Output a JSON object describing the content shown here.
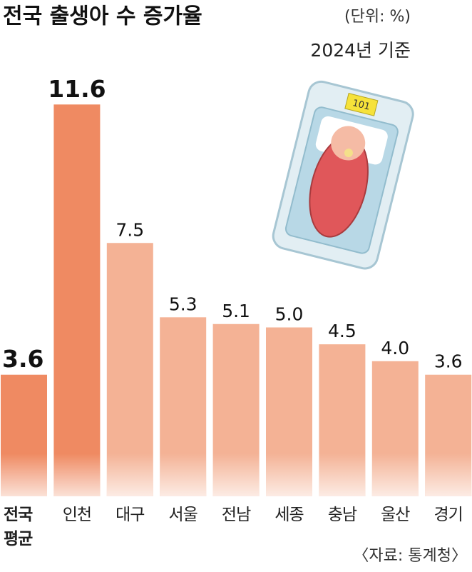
{
  "chart_data": {
    "type": "bar",
    "title": "전국 출생아 수 증가율",
    "unit_note": "(단위: %)",
    "date_note": "2024년 기준",
    "source": "〈자료: 통계청〉",
    "illustration_label": "101",
    "categories": [
      "전국 평균",
      "인천",
      "대구",
      "서울",
      "전남",
      "세종",
      "충남",
      "울산",
      "경기"
    ],
    "values": [
      3.6,
      11.6,
      7.5,
      5.3,
      5.1,
      5.0,
      4.5,
      4.0,
      3.6
    ],
    "value_labels": [
      "3.6",
      "11.6",
      "7.5",
      "5.3",
      "5.1",
      "5.0",
      "4.5",
      "4.0",
      "3.6"
    ],
    "colors": [
      "#ef8a62",
      "#ef8a62",
      "#f4b295",
      "#f4b295",
      "#f4b295",
      "#f4b295",
      "#f4b295",
      "#f4b295",
      "#f4b295"
    ]
  }
}
